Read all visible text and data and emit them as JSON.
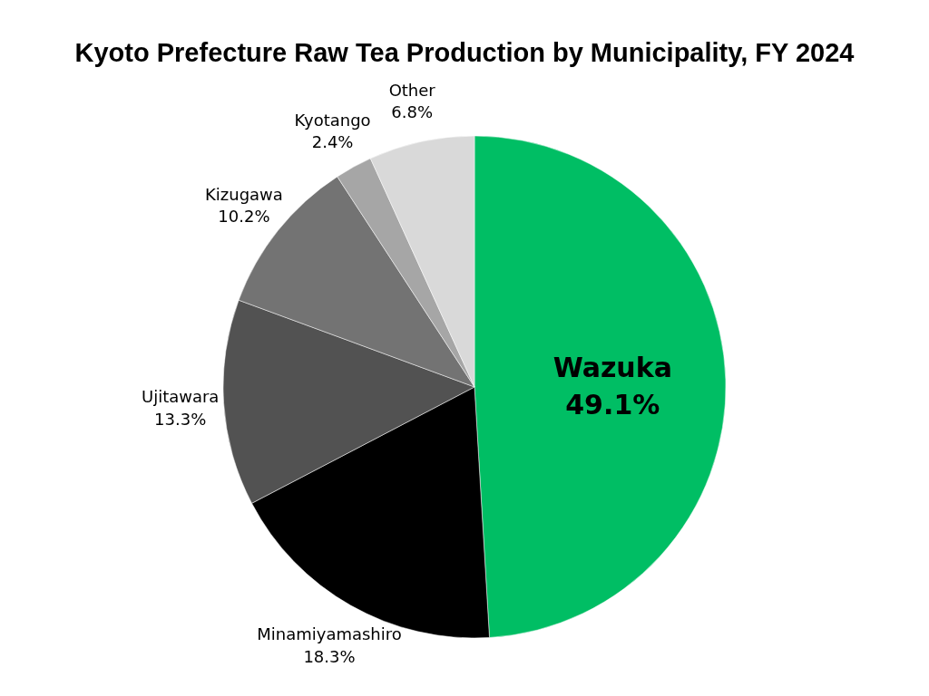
{
  "chart_data": {
    "type": "pie",
    "title": "Kyoto Prefecture Raw Tea Production by Municipality, FY 2024",
    "categories": [
      "Wazuka",
      "Minamiyamashiro",
      "Ujitawara",
      "Kizugawa",
      "Kyotango",
      "Other"
    ],
    "values": [
      49.1,
      18.3,
      13.3,
      10.2,
      2.4,
      6.8
    ],
    "colors": [
      "#00be64",
      "#000000",
      "#525252",
      "#737373",
      "#a6a6a6",
      "#d9d9d9"
    ],
    "value_labels": [
      "49.1%",
      "18.3%",
      "13.3%",
      "10.2%",
      "2.4%",
      "6.8%"
    ]
  }
}
